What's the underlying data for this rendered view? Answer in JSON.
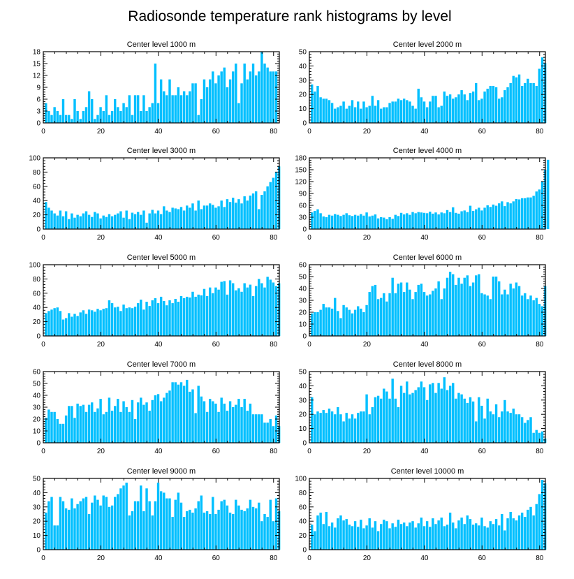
{
  "figure": {
    "title": "Radiosonde temperature rank histograms by level",
    "bar_color": "#00BFFF"
  },
  "chart_data": [
    {
      "type": "bar",
      "title": "Center level 1000 m",
      "xlim": [
        0,
        82
      ],
      "ylim": [
        0,
        18
      ],
      "xticks": [
        0,
        20,
        40,
        60,
        80
      ],
      "yticks": [
        0,
        3,
        6,
        9,
        12,
        15,
        18
      ],
      "x_start": 1,
      "values": [
        5,
        3,
        2,
        4,
        3,
        2,
        6,
        2,
        2,
        1,
        6,
        3,
        1,
        3,
        4,
        8,
        6,
        1,
        2,
        4,
        3,
        7,
        2,
        3,
        6,
        4,
        3,
        5,
        4,
        7,
        2,
        7,
        7,
        3,
        7,
        3,
        4,
        5,
        15,
        5,
        11,
        8,
        7,
        11,
        7,
        7,
        9,
        7,
        8,
        7,
        8,
        10,
        10,
        2,
        6,
        11,
        9,
        11,
        13,
        10,
        12,
        13,
        14,
        9,
        11,
        13,
        15,
        5,
        10,
        15,
        11,
        13,
        15,
        12,
        13,
        18,
        15,
        14,
        13,
        13,
        13
      ]
    },
    {
      "type": "bar",
      "title": "Center level 2000 m",
      "xlim": [
        0,
        82
      ],
      "ylim": [
        0,
        50
      ],
      "xticks": [
        0,
        20,
        40,
        60,
        80
      ],
      "yticks": [
        0,
        10,
        20,
        30,
        40,
        50
      ],
      "x_start": 1,
      "values": [
        27,
        22,
        26,
        18,
        17,
        17,
        16,
        14,
        10,
        11,
        12,
        15,
        10,
        12,
        16,
        11,
        15,
        10,
        15,
        11,
        12,
        19,
        12,
        16,
        10,
        11,
        11,
        14,
        15,
        15,
        17,
        16,
        17,
        16,
        15,
        12,
        10,
        24,
        18,
        15,
        11,
        15,
        19,
        19,
        11,
        12,
        22,
        19,
        20,
        17,
        18,
        20,
        23,
        20,
        16,
        21,
        22,
        28,
        16,
        17,
        22,
        24,
        26,
        26,
        25,
        17,
        18,
        23,
        25,
        28,
        33,
        32,
        34,
        26,
        28,
        31,
        28,
        28,
        26,
        38,
        46,
        42
      ]
    },
    {
      "type": "bar",
      "title": "Center level 3000 m",
      "xlim": [
        0,
        82
      ],
      "ylim": [
        0,
        100
      ],
      "xticks": [
        0,
        20,
        40,
        60,
        80
      ],
      "yticks": [
        0,
        20,
        40,
        60,
        80,
        100
      ],
      "x_start": 1,
      "values": [
        38,
        30,
        26,
        22,
        19,
        26,
        18,
        25,
        14,
        22,
        16,
        20,
        18,
        22,
        25,
        20,
        17,
        24,
        22,
        15,
        19,
        17,
        21,
        18,
        20,
        22,
        25,
        16,
        26,
        14,
        23,
        21,
        24,
        20,
        26,
        9,
        22,
        27,
        22,
        26,
        21,
        32,
        26,
        24,
        30,
        29,
        28,
        31,
        26,
        33,
        30,
        36,
        26,
        40,
        28,
        33,
        33,
        36,
        34,
        30,
        32,
        40,
        31,
        42,
        38,
        44,
        37,
        42,
        36,
        46,
        40,
        47,
        50,
        53,
        28,
        48,
        53,
        60,
        66,
        72,
        80,
        88
      ]
    },
    {
      "type": "bar",
      "title": "Center level 4000 m",
      "xlim": [
        0,
        82
      ],
      "ylim": [
        0,
        180
      ],
      "xticks": [
        0,
        20,
        40,
        60,
        80
      ],
      "yticks": [
        0,
        30,
        60,
        90,
        120,
        150,
        180
      ],
      "x_start": 1,
      "values": [
        42,
        46,
        50,
        40,
        32,
        30,
        36,
        34,
        38,
        36,
        33,
        36,
        40,
        35,
        33,
        36,
        34,
        38,
        34,
        42,
        32,
        34,
        37,
        27,
        30,
        29,
        25,
        30,
        26,
        36,
        33,
        41,
        37,
        40,
        36,
        43,
        40,
        43,
        42,
        41,
        40,
        44,
        39,
        42,
        37,
        42,
        40,
        48,
        43,
        55,
        41,
        39,
        45,
        47,
        43,
        59,
        46,
        50,
        54,
        47,
        54,
        60,
        56,
        62,
        59,
        65,
        70,
        58,
        68,
        65,
        70,
        76,
        75,
        78,
        78,
        80,
        80,
        84,
        95,
        100,
        120,
        150,
        175
      ]
    },
    {
      "type": "bar",
      "title": "Center level 5000 m",
      "xlim": [
        0,
        82
      ],
      "ylim": [
        0,
        100
      ],
      "xticks": [
        0,
        20,
        40,
        60,
        80
      ],
      "yticks": [
        0,
        20,
        40,
        60,
        80,
        100
      ],
      "x_start": 1,
      "values": [
        32,
        35,
        37,
        39,
        40,
        35,
        23,
        25,
        32,
        27,
        31,
        28,
        33,
        36,
        31,
        37,
        36,
        34,
        38,
        36,
        38,
        39,
        50,
        46,
        40,
        41,
        35,
        44,
        39,
        40,
        39,
        41,
        46,
        51,
        37,
        48,
        42,
        50,
        53,
        46,
        55,
        49,
        43,
        50,
        46,
        52,
        48,
        56,
        53,
        55,
        54,
        62,
        55,
        58,
        57,
        66,
        56,
        68,
        60,
        68,
        65,
        76,
        77,
        58,
        78,
        74,
        64,
        67,
        62,
        74,
        68,
        72,
        56,
        70,
        80,
        74,
        68,
        83,
        79,
        75,
        70,
        74
      ]
    },
    {
      "type": "bar",
      "title": "Center level 6000 m",
      "xlim": [
        0,
        82
      ],
      "ylim": [
        0,
        60
      ],
      "xticks": [
        0,
        20,
        40,
        60,
        80
      ],
      "yticks": [
        0,
        10,
        20,
        30,
        40,
        50,
        60
      ],
      "x_start": 1,
      "values": [
        19,
        20,
        20,
        22,
        27,
        24,
        24,
        23,
        32,
        21,
        15,
        26,
        24,
        22,
        19,
        22,
        25,
        23,
        20,
        26,
        37,
        42,
        43,
        31,
        32,
        36,
        29,
        36,
        49,
        36,
        44,
        45,
        37,
        45,
        39,
        31,
        37,
        43,
        44,
        37,
        34,
        35,
        38,
        40,
        46,
        31,
        40,
        49,
        54,
        52,
        43,
        49,
        44,
        49,
        51,
        42,
        45,
        51,
        52,
        36,
        35,
        34,
        31,
        50,
        50,
        46,
        35,
        39,
        35,
        44,
        40,
        45,
        42,
        34,
        36,
        31,
        34,
        30,
        32,
        27,
        25,
        42
      ]
    },
    {
      "type": "bar",
      "title": "Center level 7000 m",
      "xlim": [
        0,
        82
      ],
      "ylim": [
        0,
        60
      ],
      "xticks": [
        0,
        20,
        40,
        60,
        80
      ],
      "yticks": [
        0,
        10,
        20,
        30,
        40,
        50,
        60
      ],
      "x_start": 1,
      "values": [
        21,
        28,
        26,
        26,
        20,
        16,
        16,
        23,
        31,
        31,
        21,
        33,
        31,
        32,
        26,
        32,
        34,
        26,
        29,
        37,
        24,
        26,
        38,
        27,
        31,
        37,
        26,
        35,
        30,
        26,
        36,
        20,
        34,
        38,
        32,
        34,
        27,
        36,
        40,
        41,
        35,
        38,
        42,
        44,
        51,
        51,
        49,
        51,
        48,
        53,
        43,
        45,
        25,
        48,
        39,
        35,
        26,
        37,
        35,
        33,
        26,
        38,
        33,
        27,
        35,
        30,
        32,
        37,
        30,
        37,
        27,
        33,
        24,
        24,
        24,
        24,
        17,
        17,
        20,
        14,
        23,
        14
      ]
    },
    {
      "type": "bar",
      "title": "Center level 8000 m",
      "xlim": [
        0,
        82
      ],
      "ylim": [
        0,
        50
      ],
      "xticks": [
        0,
        20,
        40,
        60,
        80
      ],
      "yticks": [
        0,
        10,
        20,
        30,
        40,
        50
      ],
      "x_start": 1,
      "values": [
        32,
        20,
        22,
        21,
        23,
        21,
        24,
        22,
        20,
        25,
        20,
        15,
        21,
        17,
        20,
        17,
        21,
        22,
        22,
        34,
        20,
        25,
        32,
        33,
        31,
        38,
        36,
        31,
        45,
        31,
        25,
        40,
        35,
        43,
        34,
        35,
        37,
        39,
        43,
        39,
        30,
        41,
        42,
        35,
        42,
        38,
        46,
        37,
        40,
        42,
        31,
        35,
        34,
        31,
        28,
        32,
        29,
        15,
        32,
        26,
        17,
        31,
        22,
        20,
        27,
        18,
        22,
        30,
        22,
        21,
        24,
        20,
        20,
        18,
        14,
        16,
        18,
        7,
        9,
        7,
        8,
        3
      ]
    },
    {
      "type": "bar",
      "title": "Center level 9000 m",
      "xlim": [
        0,
        82
      ],
      "ylim": [
        0,
        50
      ],
      "xticks": [
        0,
        20,
        40,
        60,
        80
      ],
      "yticks": [
        0,
        10,
        20,
        30,
        40,
        50
      ],
      "x_start": 1,
      "values": [
        26,
        34,
        37,
        17,
        17,
        37,
        34,
        29,
        28,
        36,
        29,
        32,
        34,
        36,
        37,
        25,
        33,
        38,
        35,
        31,
        38,
        37,
        30,
        31,
        37,
        39,
        43,
        45,
        47,
        24,
        27,
        34,
        34,
        45,
        27,
        43,
        34,
        24,
        34,
        47,
        41,
        40,
        36,
        36,
        23,
        35,
        40,
        33,
        23,
        27,
        28,
        26,
        29,
        34,
        38,
        26,
        27,
        25,
        37,
        25,
        28,
        34,
        35,
        31,
        26,
        25,
        35,
        31,
        28,
        27,
        29,
        35,
        30,
        29,
        33,
        20,
        25,
        23,
        35,
        20,
        36,
        27
      ]
    },
    {
      "type": "bar",
      "title": "Center level 10000 m",
      "xlim": [
        0,
        82
      ],
      "ylim": [
        0,
        100
      ],
      "xticks": [
        0,
        20,
        40,
        60,
        80
      ],
      "yticks": [
        0,
        20,
        40,
        60,
        80,
        100
      ],
      "x_start": 1,
      "values": [
        35,
        26,
        48,
        52,
        36,
        53,
        33,
        38,
        31,
        44,
        48,
        41,
        43,
        35,
        33,
        40,
        32,
        42,
        30,
        34,
        44,
        31,
        40,
        26,
        36,
        42,
        40,
        30,
        37,
        32,
        42,
        36,
        38,
        33,
        38,
        40,
        31,
        37,
        45,
        33,
        40,
        32,
        44,
        36,
        41,
        45,
        33,
        35,
        52,
        38,
        30,
        41,
        45,
        36,
        48,
        43,
        35,
        37,
        34,
        45,
        33,
        31,
        40,
        36,
        43,
        34,
        50,
        27,
        44,
        53,
        44,
        41,
        48,
        52,
        46,
        56,
        60,
        48,
        64,
        78,
        98,
        93
      ]
    }
  ]
}
